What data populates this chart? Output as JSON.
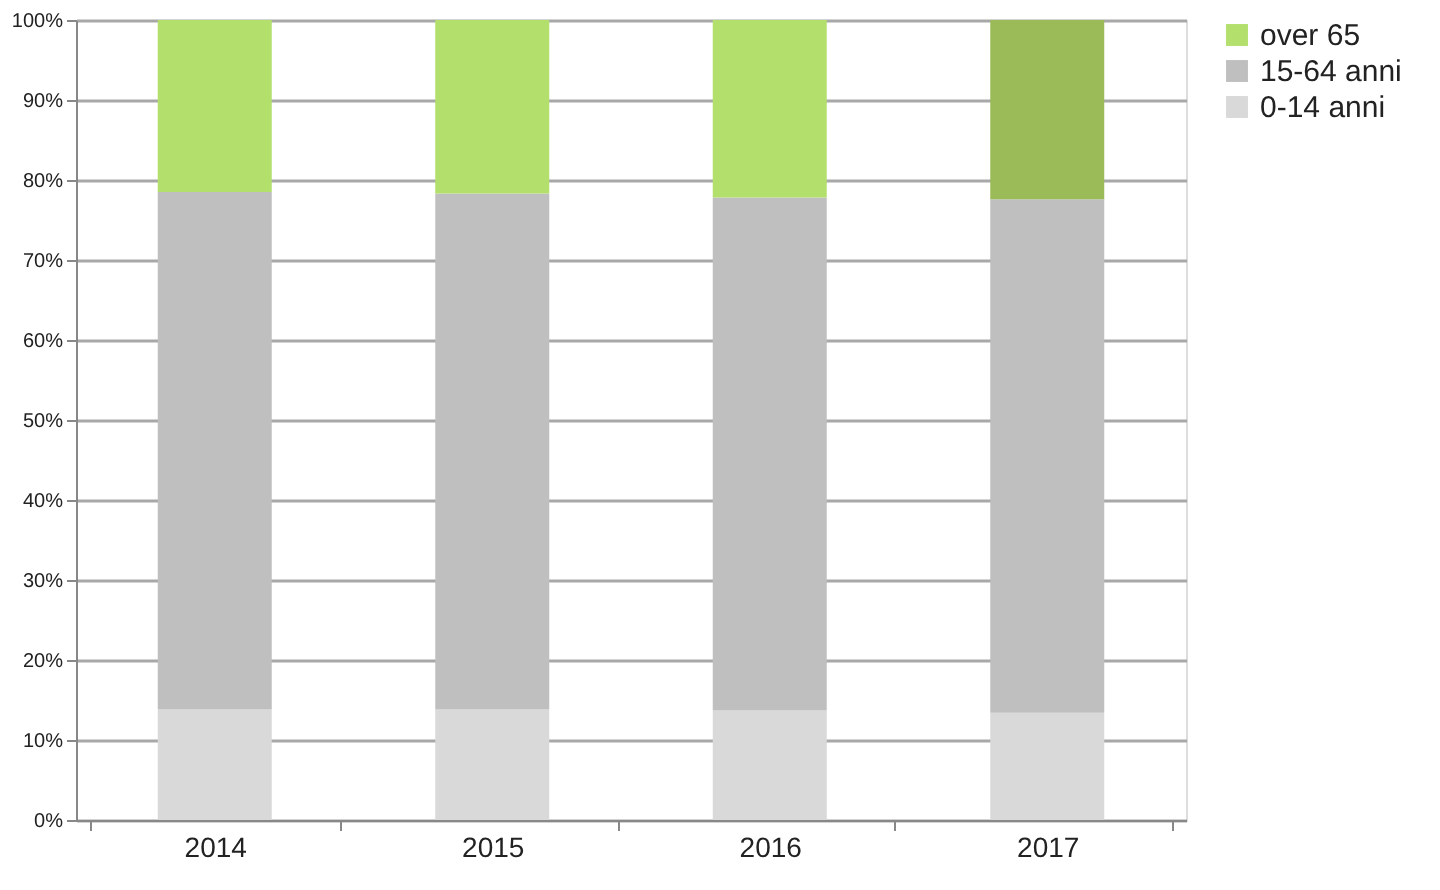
{
  "chart_data": {
    "type": "bar",
    "stacked": true,
    "categories": [
      "2014",
      "2015",
      "2016",
      "2017"
    ],
    "series": [
      {
        "name": "0-14 anni",
        "color": "#d9d9d9",
        "values": [
          13.8,
          13.8,
          13.7,
          13.4
        ]
      },
      {
        "name": "15-64 anni",
        "color": "#bfbfbf",
        "values": [
          64.7,
          64.5,
          64.1,
          64.2
        ]
      },
      {
        "name": "over 65",
        "color": "#b3df6c",
        "colors": [
          "#b3df6c",
          "#b3df6c",
          "#b3df6c",
          "#9bbb59"
        ],
        "values": [
          21.5,
          21.7,
          22.2,
          22.4
        ]
      }
    ],
    "ylim": [
      0,
      100
    ],
    "yticks": [
      {
        "value": 0,
        "label": "0%"
      },
      {
        "value": 10,
        "label": "10%"
      },
      {
        "value": 20,
        "label": "20%"
      },
      {
        "value": 30,
        "label": "30%"
      },
      {
        "value": 40,
        "label": "40%"
      },
      {
        "value": 50,
        "label": "50%"
      },
      {
        "value": 60,
        "label": "60%"
      },
      {
        "value": 70,
        "label": "70%"
      },
      {
        "value": 80,
        "label": "80%"
      },
      {
        "value": 90,
        "label": "90%"
      },
      {
        "value": 100,
        "label": "100%"
      }
    ],
    "grid": "y",
    "legend": "right"
  }
}
